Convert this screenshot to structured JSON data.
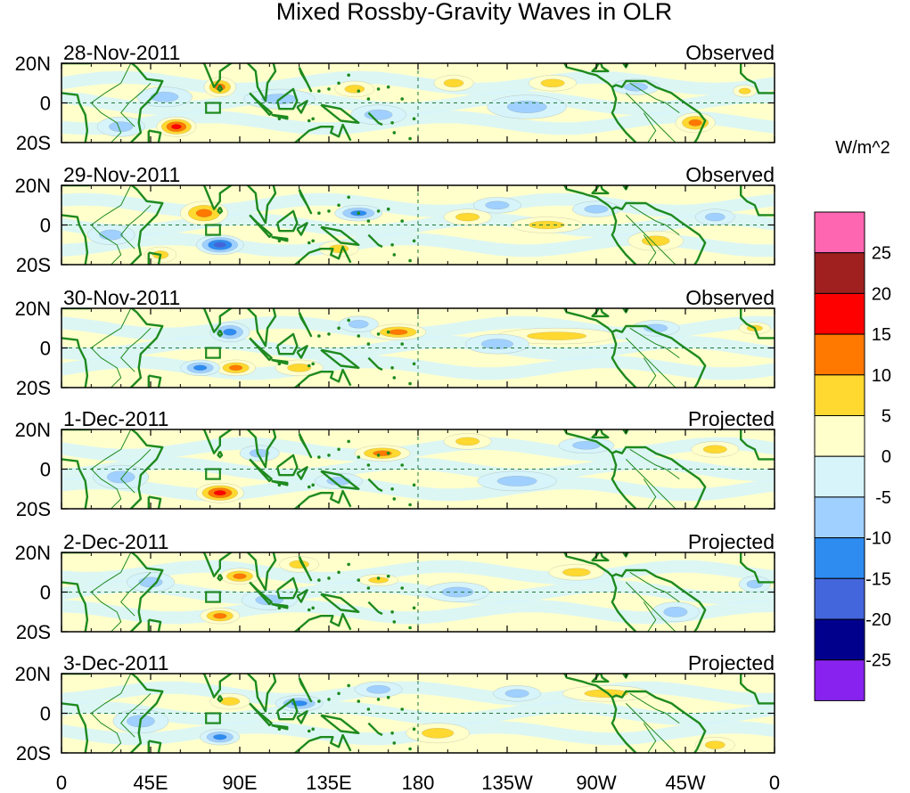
{
  "title": "Mixed Rossby-Gravity Waves in OLR",
  "colorbar": {
    "unit": "W/m^2",
    "levels": [
      "25",
      "20",
      "15",
      "10",
      "5",
      "0",
      "-5",
      "-10",
      "-15",
      "-20",
      "-25"
    ],
    "colors": [
      "#ff66b2",
      "#a02020",
      "#ff0000",
      "#ff7800",
      "#ffd830",
      "#ffffcc",
      "#d6f4fa",
      "#a0d0ff",
      "#2e8cf0",
      "#4466dd",
      "#00008c",
      "#8822ee"
    ]
  },
  "lat_labels": [
    "20N",
    "0",
    "20S"
  ],
  "lon_labels": [
    "0",
    "45E",
    "90E",
    "135E",
    "180",
    "135W",
    "90W",
    "45W",
    "0"
  ],
  "lon_values": [
    0,
    45,
    90,
    135,
    180,
    225,
    270,
    315,
    360
  ],
  "lat_range": [
    -20,
    20
  ],
  "lon_range": [
    0,
    360
  ],
  "panels": [
    {
      "date": "28-Nov-2011",
      "status": "Observed",
      "blobs": [
        [
          80,
          8,
          8,
          5,
          10
        ],
        [
          148,
          7,
          10,
          4,
          8
        ],
        [
          58,
          -12,
          10,
          5,
          16
        ],
        [
          198,
          10,
          10,
          4,
          7
        ],
        [
          248,
          10,
          12,
          4,
          7
        ],
        [
          320,
          -10,
          10,
          5,
          12
        ],
        [
          345,
          6,
          6,
          3,
          5
        ],
        [
          52,
          3,
          14,
          5,
          -5
        ],
        [
          110,
          2,
          18,
          5,
          -6
        ],
        [
          160,
          -6,
          14,
          5,
          -5
        ],
        [
          235,
          -2,
          20,
          6,
          -4
        ],
        [
          290,
          8,
          12,
          4,
          -6
        ],
        [
          30,
          -12,
          12,
          5,
          -4
        ]
      ]
    },
    {
      "date": "29-Nov-2011",
      "status": "Observed",
      "blobs": [
        [
          72,
          6,
          12,
          6,
          12
        ],
        [
          140,
          -12,
          10,
          4,
          8
        ],
        [
          50,
          -15,
          8,
          4,
          6
        ],
        [
          205,
          4,
          12,
          4,
          7
        ],
        [
          245,
          0,
          18,
          4,
          6
        ],
        [
          300,
          -8,
          14,
          5,
          6
        ],
        [
          80,
          -10,
          12,
          5,
          -15
        ],
        [
          150,
          6,
          12,
          4,
          -14
        ],
        [
          220,
          10,
          12,
          4,
          -6
        ],
        [
          270,
          8,
          12,
          4,
          -7
        ],
        [
          330,
          4,
          10,
          4,
          -9
        ],
        [
          25,
          -5,
          12,
          5,
          -4
        ]
      ]
    },
    {
      "date": "30-Nov-2011",
      "status": "Observed",
      "blobs": [
        [
          88,
          -10,
          10,
          4,
          12
        ],
        [
          170,
          8,
          14,
          4,
          10
        ],
        [
          350,
          10,
          8,
          3,
          8
        ],
        [
          120,
          -10,
          12,
          4,
          7
        ],
        [
          250,
          6,
          30,
          4,
          5
        ],
        [
          70,
          -10,
          10,
          4,
          -14
        ],
        [
          85,
          8,
          10,
          5,
          -12
        ],
        [
          150,
          12,
          10,
          4,
          -5
        ],
        [
          220,
          2,
          16,
          5,
          -5
        ],
        [
          300,
          10,
          12,
          4,
          -5
        ]
      ]
    },
    {
      "date": "1-Dec-2011",
      "status": "Projected",
      "blobs": [
        [
          80,
          -12,
          12,
          5,
          15
        ],
        [
          162,
          8,
          14,
          4,
          12
        ],
        [
          330,
          10,
          12,
          4,
          8
        ],
        [
          205,
          14,
          12,
          4,
          6
        ],
        [
          100,
          8,
          10,
          4,
          -5
        ],
        [
          140,
          -6,
          12,
          4,
          -5
        ],
        [
          265,
          12,
          14,
          4,
          -6
        ],
        [
          30,
          -4,
          14,
          6,
          -4
        ],
        [
          230,
          -6,
          20,
          5,
          -4
        ]
      ]
    },
    {
      "date": "2-Dec-2011",
      "status": "Projected",
      "blobs": [
        [
          80,
          -12,
          10,
          4,
          12
        ],
        [
          90,
          8,
          10,
          4,
          10
        ],
        [
          120,
          14,
          10,
          4,
          6
        ],
        [
          160,
          6,
          10,
          3,
          6
        ],
        [
          260,
          10,
          14,
          4,
          6
        ],
        [
          45,
          5,
          12,
          5,
          -5
        ],
        [
          105,
          -4,
          14,
          5,
          -6
        ],
        [
          200,
          0,
          16,
          5,
          -4
        ],
        [
          350,
          4,
          8,
          4,
          -6
        ],
        [
          310,
          -10,
          12,
          5,
          -4
        ]
      ]
    },
    {
      "date": "3-Dec-2011",
      "status": "Projected",
      "blobs": [
        [
          80,
          -12,
          10,
          4,
          -14
        ],
        [
          120,
          5,
          12,
          4,
          -12
        ],
        [
          275,
          10,
          22,
          4,
          7
        ],
        [
          330,
          -16,
          10,
          4,
          8
        ],
        [
          85,
          6,
          10,
          4,
          6
        ],
        [
          160,
          12,
          12,
          4,
          -6
        ],
        [
          230,
          10,
          12,
          4,
          -5
        ],
        [
          40,
          -4,
          14,
          6,
          -4
        ],
        [
          190,
          -10,
          16,
          5,
          4
        ]
      ]
    }
  ]
}
